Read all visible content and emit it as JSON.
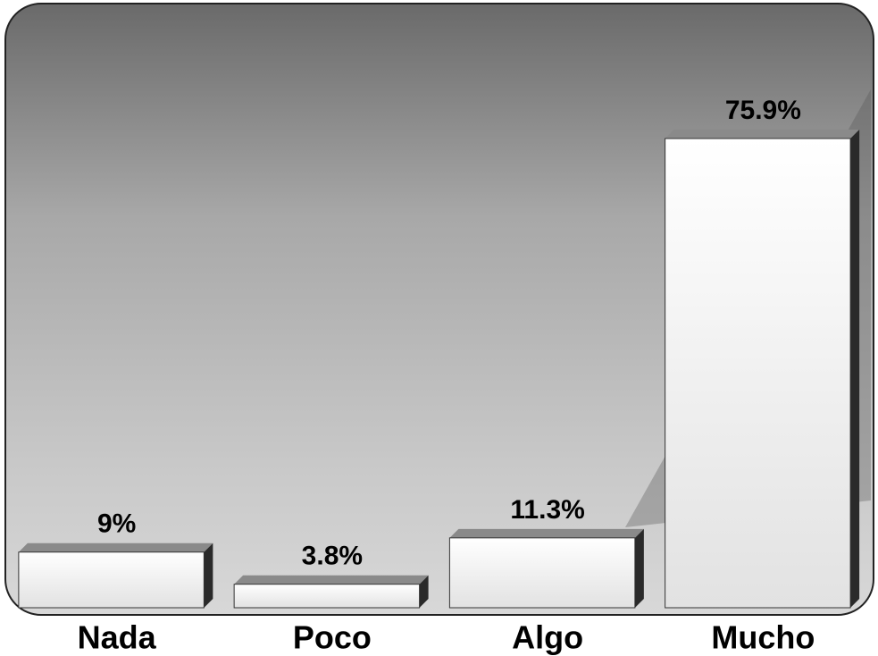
{
  "chart_data": {
    "type": "bar",
    "categories": [
      "Nada",
      "Poco",
      "Algo",
      "Mucho"
    ],
    "values": [
      9,
      3.8,
      11.3,
      75.9
    ],
    "value_labels": [
      "9%",
      "3.8%",
      "11.3%",
      "75.9%"
    ],
    "color": "#f4f4f4"
  }
}
